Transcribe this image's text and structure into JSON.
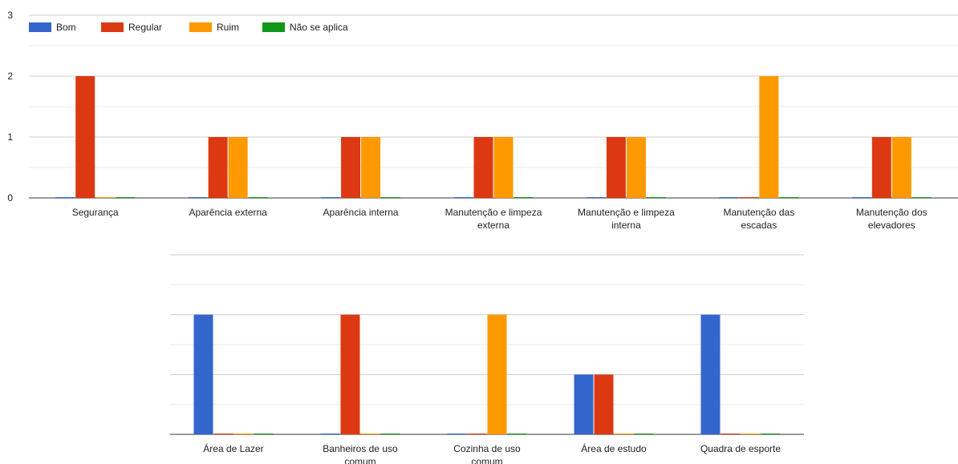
{
  "legend": [
    {
      "name": "Bom",
      "color": "#3366cc"
    },
    {
      "name": "Regular",
      "color": "#dc3912"
    },
    {
      "name": "Ruim",
      "color": "#ff9900"
    },
    {
      "name": "Não se aplica",
      "color": "#109618"
    }
  ],
  "chart_data": [
    {
      "type": "bar",
      "categories": [
        [
          "Segurança"
        ],
        [
          "Aparência externa"
        ],
        [
          "Aparência interna"
        ],
        [
          "Manutenção e limpeza",
          "externa"
        ],
        [
          "Manutenção e limpeza",
          "interna"
        ],
        [
          "Manutenção das",
          "escadas"
        ],
        [
          "Manutenção dos",
          "elevadores"
        ]
      ],
      "series": [
        {
          "name": "Bom",
          "color": "#3366cc",
          "values": [
            0,
            0,
            0,
            0,
            0,
            0,
            0
          ]
        },
        {
          "name": "Regular",
          "color": "#dc3912",
          "values": [
            2,
            1,
            1,
            1,
            1,
            0,
            1
          ]
        },
        {
          "name": "Ruim",
          "color": "#ff9900",
          "values": [
            0,
            1,
            1,
            1,
            1,
            2,
            1
          ]
        },
        {
          "name": "Não se aplica",
          "color": "#109618",
          "values": [
            0,
            0,
            0,
            0,
            0,
            0,
            0
          ]
        }
      ],
      "yticks": [
        0,
        1,
        2,
        3
      ],
      "ylim": [
        0,
        3
      ],
      "grid": true,
      "legend_position": "top-left"
    },
    {
      "type": "bar",
      "categories": [
        [
          "Área de Lazer"
        ],
        [
          "Banheiros de uso",
          "comum"
        ],
        [
          "Cozinha de uso",
          "comum"
        ],
        [
          "Área de estudo"
        ],
        [
          "Quadra de esporte"
        ]
      ],
      "series": [
        {
          "name": "Bom",
          "color": "#3366cc",
          "values": [
            2,
            0,
            0,
            1,
            2
          ]
        },
        {
          "name": "Regular",
          "color": "#dc3912",
          "values": [
            0,
            2,
            0,
            1,
            0
          ]
        },
        {
          "name": "Ruim",
          "color": "#ff9900",
          "values": [
            0,
            0,
            2,
            0,
            0
          ]
        },
        {
          "name": "Não se aplica",
          "color": "#109618",
          "values": [
            0,
            0,
            0,
            0,
            0
          ]
        }
      ],
      "ylim": [
        0,
        3
      ],
      "grid": true
    }
  ]
}
